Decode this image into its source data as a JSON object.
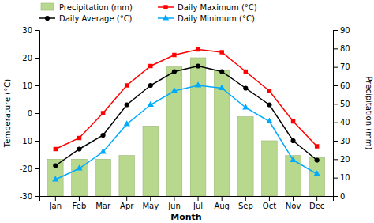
{
  "chart_data": {
    "type": "line",
    "x_label": "Month",
    "y_label": "Temperature (°C)",
    "y2_label": "Precipitation (mm)",
    "categories": [
      "Jan",
      "Feb",
      "Mar",
      "Apr",
      "May",
      "Jun",
      "Jul",
      "Aug",
      "Sep",
      "Oct",
      "Nov",
      "Dec"
    ],
    "series": [
      {
        "name": "Precipitation (mm)",
        "type": "bar",
        "axis": "y2",
        "color": "#b8d98d",
        "values": [
          20,
          20,
          20,
          22,
          38,
          70,
          75,
          68,
          43,
          30,
          22,
          21
        ]
      },
      {
        "name": "Daily Maximum (°C)",
        "type": "line",
        "color": "#ff0000",
        "marker": "square",
        "values": [
          -13,
          -9,
          0,
          10,
          17,
          21,
          23,
          22,
          15,
          8,
          -3,
          -12
        ]
      },
      {
        "name": "Daily Average (°C)",
        "type": "line",
        "color": "#000000",
        "marker": "circle",
        "values": [
          -19,
          -13,
          -8,
          3,
          10,
          15,
          17,
          15,
          9,
          3,
          -10,
          -17
        ]
      },
      {
        "name": "Daily Minimum (°C)",
        "type": "line",
        "color": "#00aaff",
        "marker": "triangle",
        "values": [
          -24,
          -20,
          -14,
          -4,
          3,
          8,
          10,
          9,
          2,
          -3,
          -17,
          -22
        ]
      }
    ],
    "ylim": [
      -30,
      30
    ],
    "yticks": [
      -30,
      -20,
      -10,
      0,
      10,
      20,
      30
    ],
    "y2lim": [
      0,
      90
    ],
    "y2ticks": [
      0,
      10,
      20,
      30,
      40,
      50,
      60,
      70,
      80,
      90
    ],
    "grid": false,
    "legend": "upper left"
  }
}
